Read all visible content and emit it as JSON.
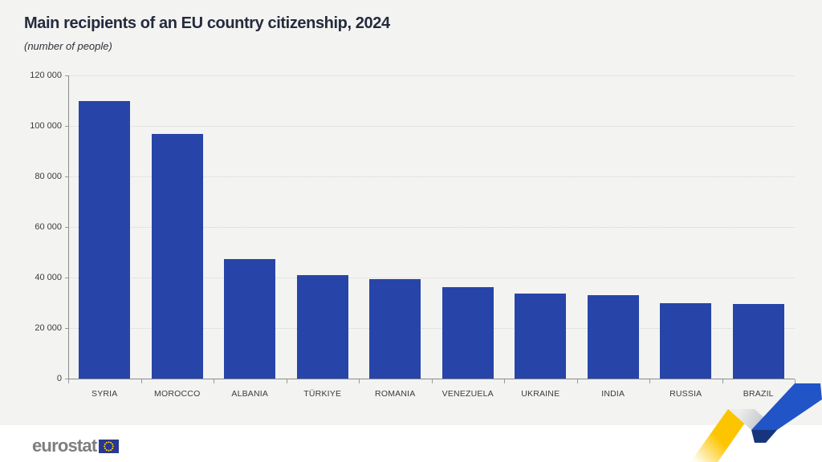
{
  "header": {
    "title": "Main recipients of an EU country citizenship, 2024",
    "subtitle": "(number of people)"
  },
  "chart_data": {
    "type": "bar",
    "title": "Main recipients of an EU country citizenship, 2024",
    "subtitle": "(number of people)",
    "categories": [
      "SYRIA",
      "MOROCCO",
      "ALBANIA",
      "TÜRKIYE",
      "ROMANIA",
      "VENEZUELA",
      "UKRAINE",
      "INDIA",
      "RUSSIA",
      "BRAZIL"
    ],
    "values": [
      110000,
      96800,
      47400,
      40900,
      39300,
      36300,
      33700,
      33000,
      29900,
      29400
    ],
    "xlabel": "",
    "ylabel": "",
    "ylim": [
      0,
      120000
    ],
    "ytick_interval": 20000,
    "ytick_labels_top_to_bottom": [
      "120 000",
      "100 000",
      "80 000",
      "60 000",
      "40 000",
      "20 000",
      "0"
    ],
    "grid": "horizontal dotted",
    "legend": "none",
    "bar_color": "#2745a8"
  },
  "footer": {
    "logo_text": "eurostat"
  },
  "colors": {
    "background": "#f3f3f1",
    "footer_background": "#ffffff",
    "bar": "#2745a8",
    "title_text": "#242b3d",
    "axis_text": "#3c3c3c",
    "eu_flag_blue": "#29388f",
    "eu_flag_stars": "#ffd617",
    "ribbon_yellow": "#fdc500",
    "ribbon_blue": "#2154c6",
    "ribbon_dark_blue": "#16357c"
  }
}
